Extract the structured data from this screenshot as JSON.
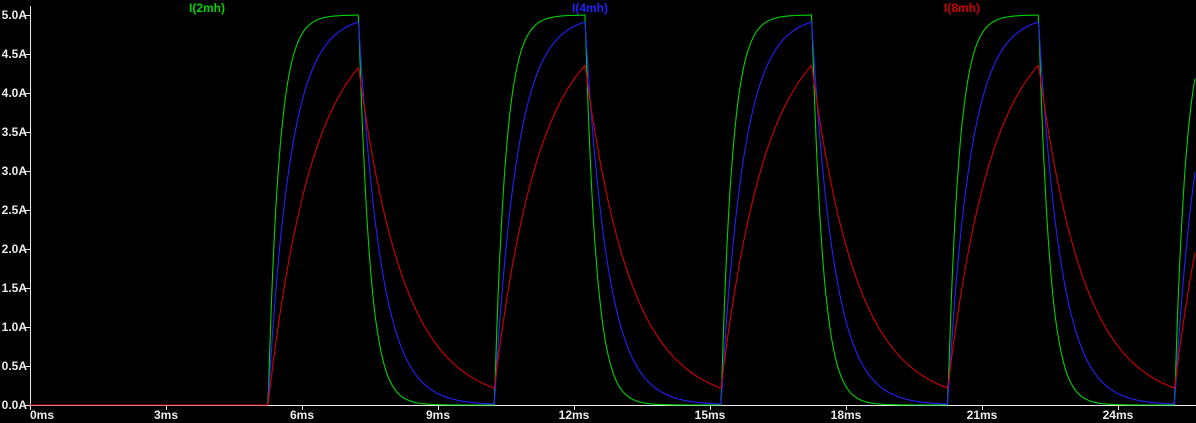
{
  "style": {
    "background": "#000000",
    "axis_color": "#ececec"
  },
  "chart_data": {
    "type": "line",
    "title": "",
    "description": "Transient simulation of inductor currents for a pulsed source: three RL charge/discharge current traces on a black oscilloscope-style plot.",
    "x_axis": {
      "unit": "ms",
      "tick_labels": [
        "0ms",
        "3ms",
        "6ms",
        "9ms",
        "12ms",
        "15ms",
        "18ms",
        "21ms",
        "24ms"
      ],
      "tick_step_ms": 3,
      "range_ms": [
        0,
        25.7
      ],
      "grid": false
    },
    "y_axis": {
      "unit": "A",
      "tick_labels": [
        "5.0A",
        "4.5A",
        "4.0A",
        "3.5A",
        "3.0A",
        "2.5A",
        "2.0A",
        "1.5A",
        "1.0A",
        "0.5A",
        "0.0A"
      ],
      "tick_step_A": 0.5,
      "range_A": [
        0,
        5
      ],
      "grid": false
    },
    "excitation": {
      "start_ms": 5.25,
      "on_ms": 2,
      "off_ms": 3,
      "period_ms": 5,
      "target_A": 5
    },
    "series": [
      {
        "name": "I(2mh)",
        "color": "#00d200",
        "tau_ms": 0.25,
        "peak_A": 5.0
      },
      {
        "name": "I(4mh)",
        "color": "#2222ff",
        "tau_ms": 0.5,
        "peak_A": 4.9
      },
      {
        "name": "I(8mh)",
        "color": "#d40000",
        "tau_ms": 1.0,
        "peak_A": 4.35
      }
    ],
    "legend_position": "top-inside"
  }
}
